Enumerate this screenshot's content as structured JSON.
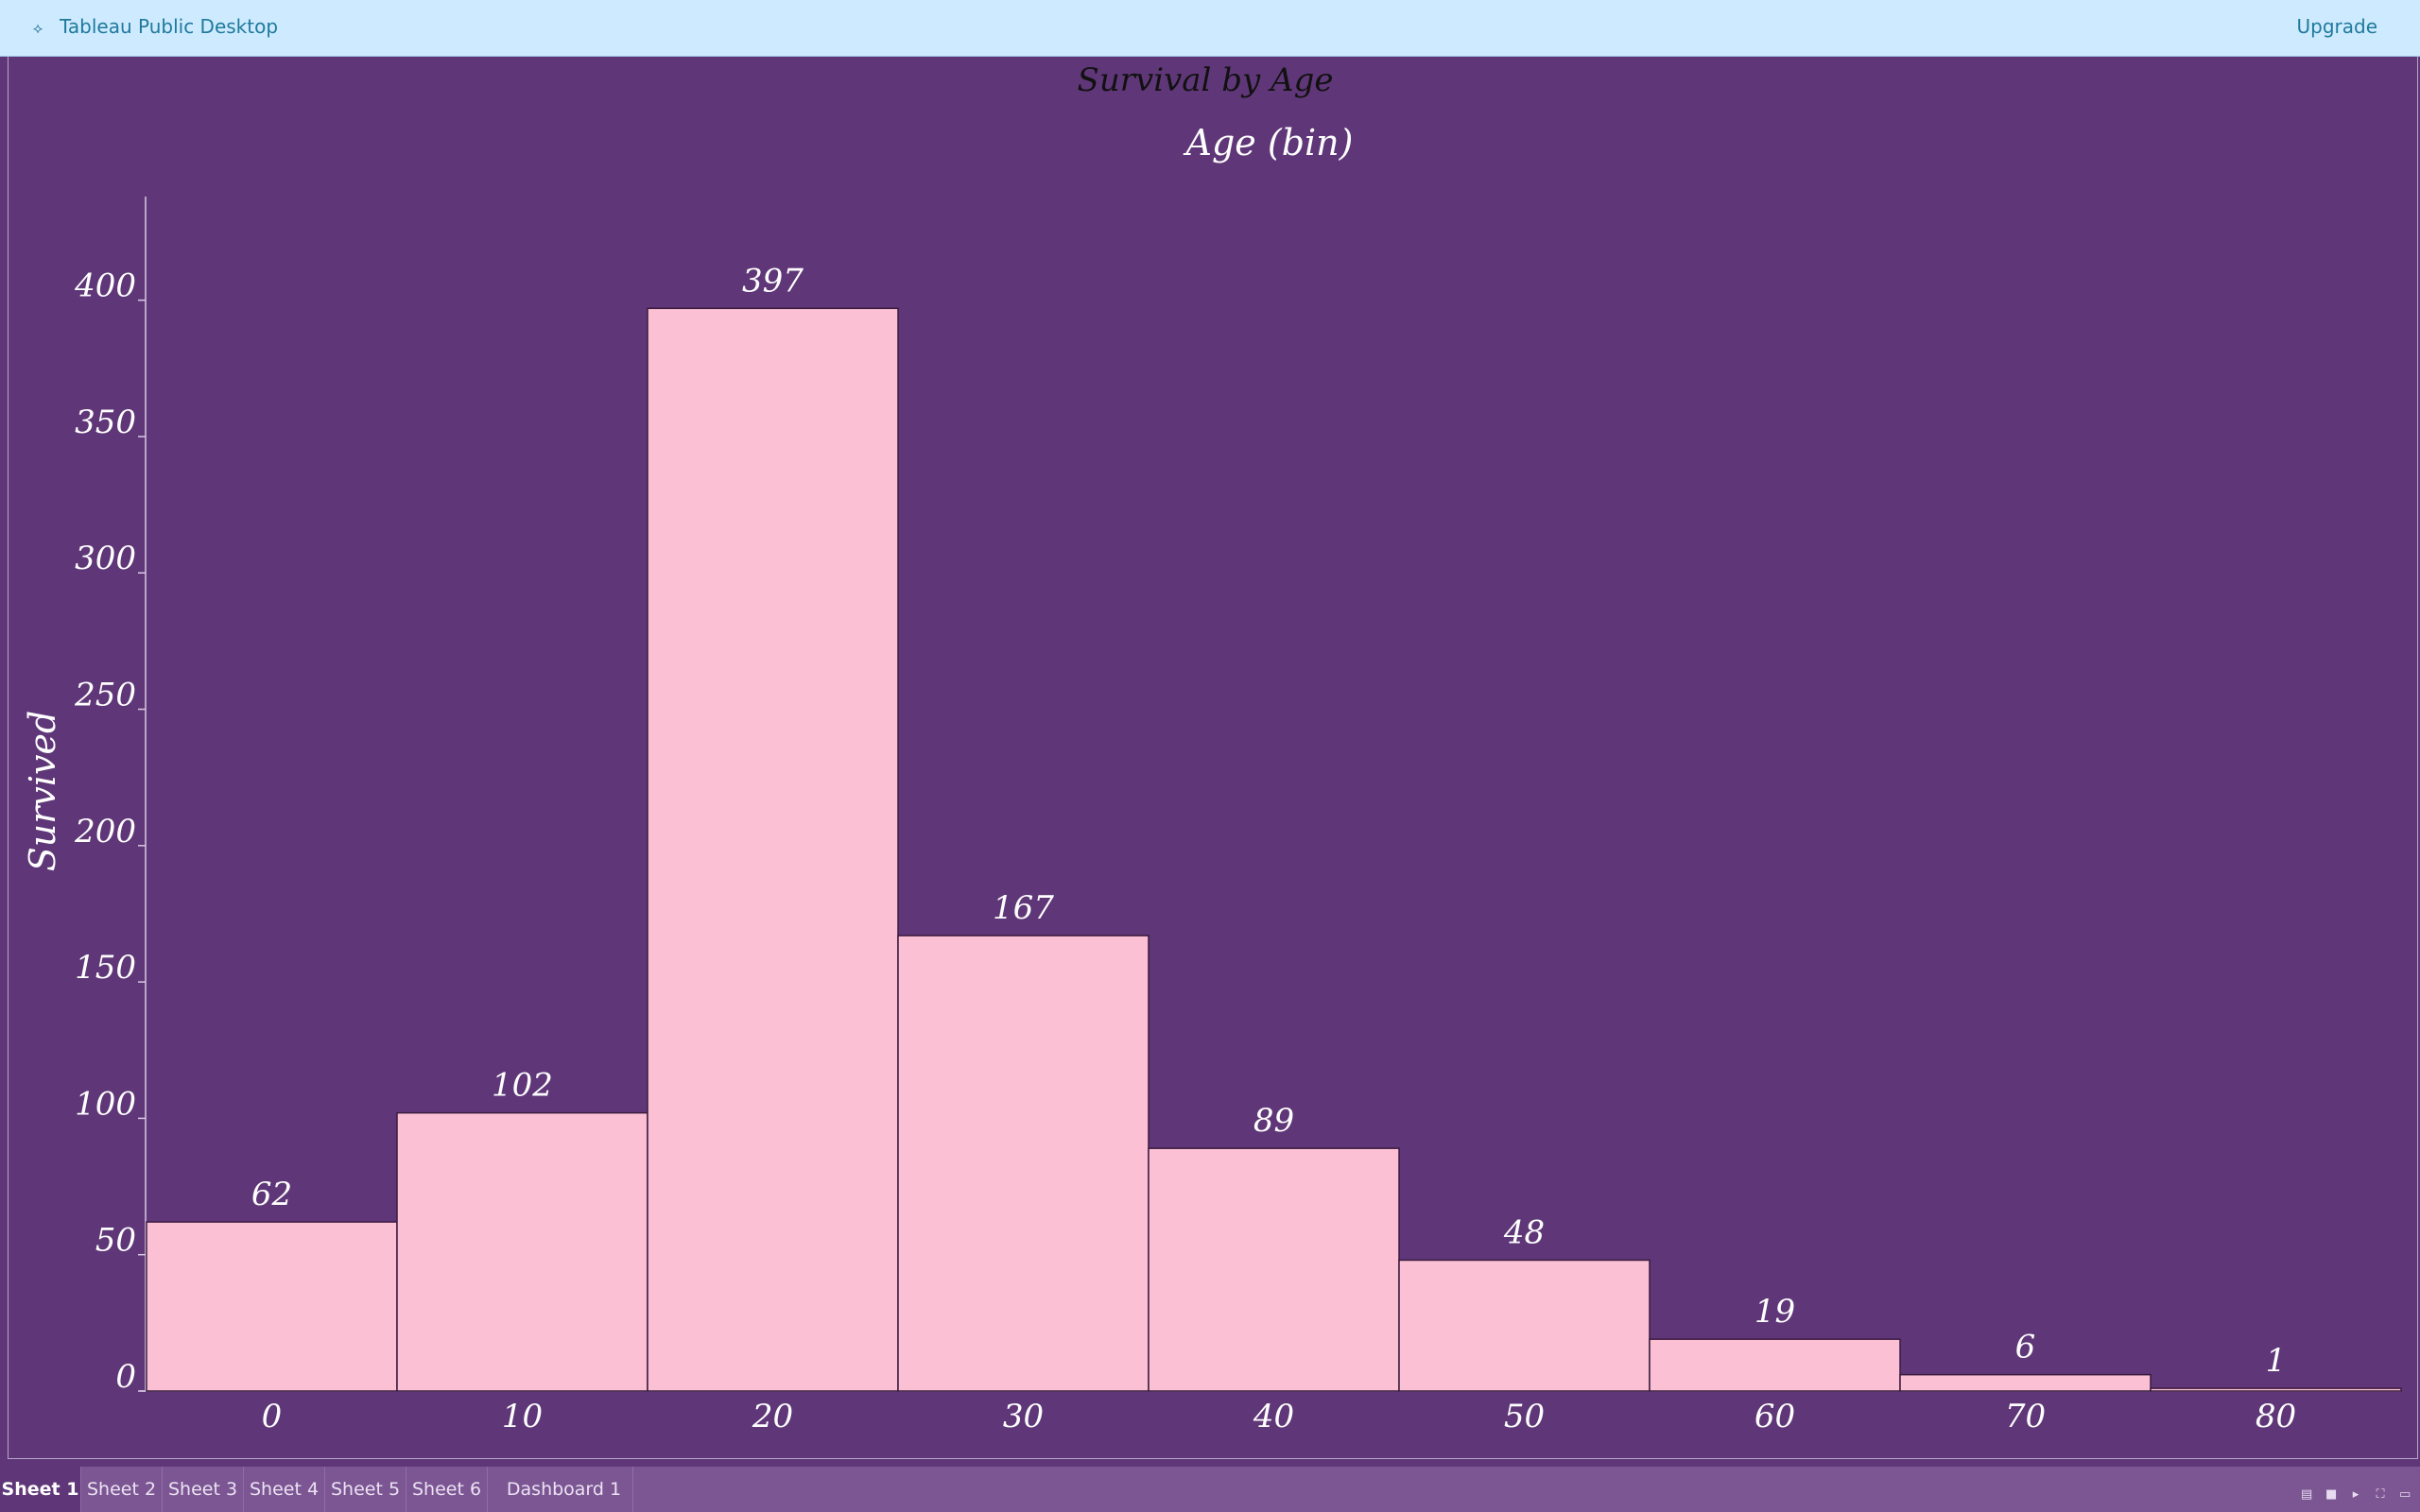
{
  "app": {
    "title": "Tableau Public Desktop",
    "upgrade_label": "Upgrade",
    "icon": "tableau-logo-icon"
  },
  "chart_data": {
    "type": "bar",
    "title": "Survival by Age",
    "xlabel": "Age (bin)",
    "ylabel": "Survived",
    "categories": [
      "0",
      "10",
      "20",
      "30",
      "40",
      "50",
      "60",
      "70",
      "80"
    ],
    "values": [
      62,
      102,
      397,
      167,
      89,
      48,
      19,
      6,
      1
    ],
    "data_labels": [
      "62",
      "102",
      "397",
      "167",
      "89",
      "48",
      "19",
      "6",
      "1"
    ],
    "yticks": [
      0,
      50,
      100,
      150,
      200,
      250,
      300,
      350,
      400
    ],
    "ylim": [
      0,
      438
    ],
    "grid": false,
    "legend": "none",
    "colors": {
      "bar": "#fbc0d3",
      "bar_border": "#3a1a3f",
      "background": "#5f3778",
      "title": "#111111",
      "text": "#ffffff"
    }
  },
  "tabs": [
    {
      "label": "Sheet 1",
      "active": true
    },
    {
      "label": "Sheet 2",
      "active": false
    },
    {
      "label": "Sheet 3",
      "active": false
    },
    {
      "label": "Sheet 4",
      "active": false
    },
    {
      "label": "Sheet 5",
      "active": false
    },
    {
      "label": "Sheet 6",
      "active": false
    },
    {
      "label": "Dashboard 1",
      "active": false
    }
  ],
  "status_icons": [
    "grid-view-icon",
    "single-view-icon",
    "play-icon",
    "fullscreen-icon",
    "present-icon"
  ]
}
